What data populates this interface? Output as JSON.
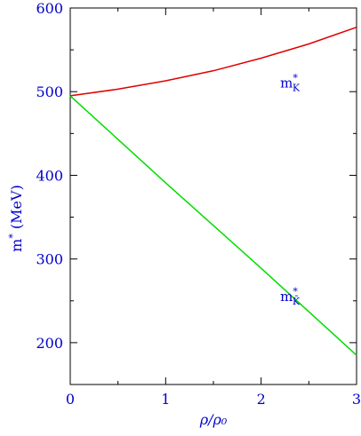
{
  "chart_data": {
    "type": "line",
    "xlabel": "ρ/ρ₀",
    "ylabel": "m* (MeV)",
    "xlim": [
      0,
      3
    ],
    "ylim": [
      150,
      600
    ],
    "x_ticks": [
      "0",
      "1",
      "2",
      "3"
    ],
    "y_ticks": [
      "200",
      "300",
      "400",
      "500",
      "600"
    ],
    "grid": false,
    "series": [
      {
        "name": "m*K",
        "color": "#e00000",
        "x": [
          0,
          0.5,
          1.0,
          1.5,
          2.0,
          2.5,
          3.0
        ],
        "values": [
          495,
          503,
          513,
          525,
          540,
          557,
          577
        ]
      },
      {
        "name": "m*K̄",
        "color": "#00dd00",
        "x": [
          0,
          0.5,
          1.0,
          1.5,
          2.0,
          2.5,
          3.0
        ],
        "values": [
          495,
          443,
          391,
          340,
          289,
          237,
          185
        ]
      }
    ],
    "annotations": [
      {
        "series": 0,
        "at_x": 2.2,
        "at_y": 505
      },
      {
        "series": 1,
        "at_x": 2.2,
        "at_y": 250
      }
    ]
  }
}
